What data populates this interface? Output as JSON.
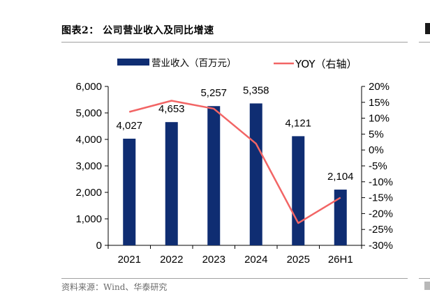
{
  "figure": {
    "title": "图表2： 公司营业收入及同比增速",
    "source": "资料来源：Wind、华泰研究"
  },
  "colors": {
    "bar": "#0f2d72",
    "line": "#f26565",
    "axis": "#000000",
    "rule": "#a0a0a0",
    "source_text": "#6b6b6b"
  },
  "chart_data": {
    "type": "bar",
    "title": "",
    "categories": [
      "2021",
      "2022",
      "2023",
      "2024",
      "2025",
      "26H1"
    ],
    "series": [
      {
        "name": "营业收入（百万元）",
        "type": "bar",
        "axis": "left",
        "values": [
          4027,
          4653,
          5257,
          5358,
          4121,
          2104
        ],
        "labels": [
          "4,027",
          "4,653",
          "5,257",
          "5,358",
          "4,121",
          "2,104"
        ]
      },
      {
        "name": "YOY（右轴）",
        "type": "line",
        "axis": "right",
        "values": [
          12,
          15.5,
          13,
          2,
          -23,
          -15
        ]
      }
    ],
    "y_left": {
      "range": [
        0,
        6000
      ],
      "ticks": [
        0,
        1000,
        2000,
        3000,
        4000,
        5000,
        6000
      ],
      "tick_labels": [
        "0",
        "1,000",
        "2,000",
        "3,000",
        "4,000",
        "5,000",
        "6,000"
      ]
    },
    "y_right": {
      "range": [
        -30,
        20
      ],
      "ticks": [
        -30,
        -25,
        -20,
        -15,
        -10,
        -5,
        0,
        5,
        10,
        15,
        20
      ],
      "tick_labels": [
        "-30%",
        "-25%",
        "-20%",
        "-15%",
        "-10%",
        "-5%",
        "0%",
        "5%",
        "10%",
        "15%",
        "20%"
      ]
    },
    "xlabel": "",
    "ylabel": "",
    "grid": false,
    "legend_position": "top"
  }
}
